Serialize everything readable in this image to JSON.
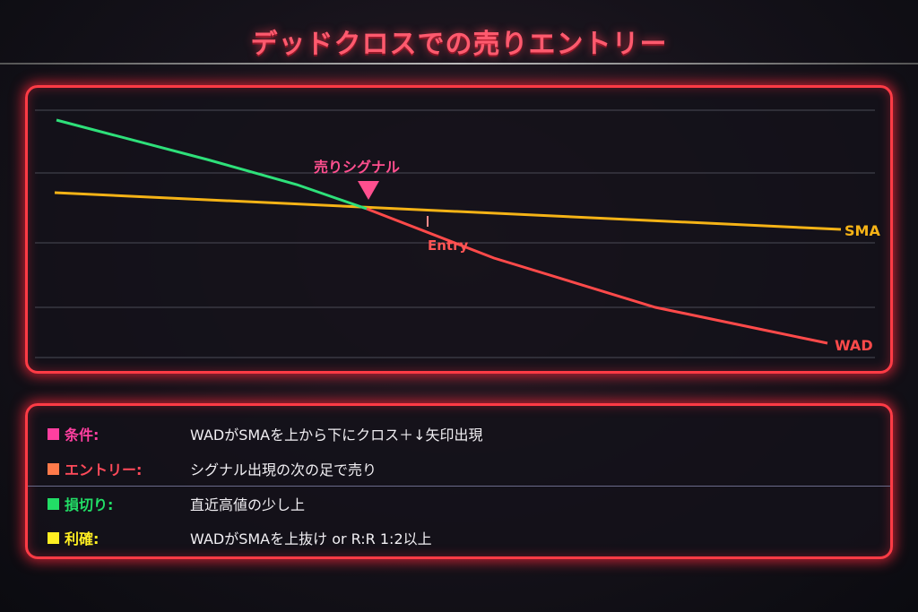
{
  "title": "デッドクロスでの売りエントリー",
  "chart": {
    "signal_label": "売りシグナル",
    "entry_label": "Entry",
    "sma_label": "SMA",
    "wad_label": "WAD",
    "colors": {
      "wad_before": "#2ee07a",
      "wad_after": "#ff4a4a",
      "sma": "#f5b316",
      "signal": "#ff4f8f"
    }
  },
  "rules": [
    {
      "key": "条件:",
      "value": "WADがSMAを上から下にクロス＋↓矢印出現",
      "color": "#ff3fa0"
    },
    {
      "key": "エントリー:",
      "value": "シグナル出現の次の足で売り",
      "color": "#ff7a4a",
      "key_color": "#ff4a5a"
    },
    {
      "key": "損切り:",
      "value": "直近高値の少し上",
      "color": "#22dd66"
    },
    {
      "key": "利確:",
      "value": "WADがSMAを上抜け or R:R 1:2以上",
      "color": "#ffee22"
    }
  ]
}
